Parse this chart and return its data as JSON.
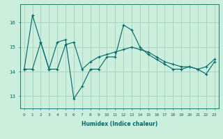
{
  "xlabel": "Humidex (Indice chaleur)",
  "background_color": "#cceedd",
  "line_color": "#006666",
  "grid_color": "#99ccbb",
  "x": [
    0,
    1,
    2,
    3,
    4,
    5,
    6,
    7,
    8,
    9,
    10,
    11,
    12,
    13,
    14,
    15,
    16,
    17,
    18,
    19,
    20,
    21,
    22,
    23
  ],
  "series1": [
    14.1,
    16.3,
    15.2,
    14.1,
    15.2,
    15.3,
    12.9,
    13.4,
    14.1,
    14.1,
    14.6,
    14.6,
    15.9,
    15.7,
    15.0,
    14.7,
    14.5,
    14.3,
    14.1,
    14.1,
    14.2,
    14.1,
    13.9,
    14.4
  ],
  "series2": [
    14.1,
    14.1,
    15.2,
    14.1,
    14.1,
    15.1,
    15.2,
    14.1,
    14.4,
    14.6,
    14.7,
    14.8,
    14.9,
    15.0,
    14.9,
    14.8,
    14.6,
    14.4,
    14.3,
    14.2,
    14.2,
    14.1,
    14.2,
    14.5
  ],
  "ylim": [
    12.5,
    16.75
  ],
  "yticks": [
    13,
    14,
    15,
    16
  ],
  "xticks": [
    0,
    1,
    2,
    3,
    4,
    5,
    6,
    7,
    8,
    9,
    10,
    11,
    12,
    13,
    14,
    15,
    16,
    17,
    18,
    19,
    20,
    21,
    22,
    23
  ]
}
